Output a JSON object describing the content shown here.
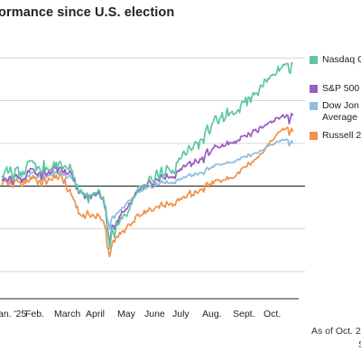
{
  "chart_data": {
    "type": "line",
    "title": "ormance since U.S. election",
    "x_tick_labels": [
      "an. '25",
      "Feb.",
      "March",
      "April",
      "May",
      "June",
      "July",
      "Aug.",
      "Sept.",
      "Oct."
    ],
    "grid": true,
    "legend_placement": "right",
    "note_lines": [
      "As of Oct. 2",
      "S"
    ],
    "ylim": [
      -0.27,
      0.33
    ],
    "baseline": 0,
    "n_points": 240,
    "series": [
      {
        "name": "Nasdaq C",
        "color": "#5ec7a2",
        "values": [
          0.024,
          0.019,
          0.03,
          0.038,
          0.045,
          0.03,
          0.034,
          0.045,
          0.03,
          0.012,
          0.026,
          0.041,
          0.043,
          0.045,
          0.023,
          0.033,
          0.022,
          0.035,
          0.027,
          0.033,
          0.048,
          0.058,
          0.058,
          0.06,
          0.058,
          0.059,
          0.053,
          0.053,
          0.037,
          0.045,
          0.045,
          0.038,
          0.03,
          0.035,
          0.06,
          0.035,
          0.044,
          0.039,
          0.039,
          0.035,
          0.042,
          0.041,
          0.057,
          0.045,
          0.056,
          0.042,
          0.053,
          0.058,
          0.052,
          0.039,
          0.045,
          0.048,
          0.044,
          0.041,
          0.039,
          0.051,
          0.039,
          0.036,
          0.016,
          0.02,
          -0.004,
          0.004,
          -0.012,
          -0.017,
          -0.008,
          -0.018,
          -0.016,
          -0.021,
          -0.018,
          -0.028,
          -0.039,
          -0.02,
          -0.022,
          -0.024,
          -0.016,
          -0.016,
          -0.016,
          -0.016,
          -0.008,
          -0.011,
          -0.025,
          -0.031,
          -0.025,
          -0.046,
          -0.057,
          -0.097,
          -0.118,
          -0.146,
          -0.127,
          -0.098,
          -0.108,
          -0.12,
          -0.1,
          -0.085,
          -0.091,
          -0.086,
          -0.073,
          -0.077,
          -0.069,
          -0.066,
          -0.069,
          -0.071,
          -0.061,
          -0.055,
          -0.045,
          -0.041,
          -0.029,
          -0.026,
          -0.022,
          -0.016,
          -0.002,
          -0.001,
          -0.0,
          -0.008,
          0.002,
          -0.005,
          -0.001,
          0.004,
          0.01,
          0.021,
          0.023,
          0.016,
          0.011,
          0.006,
          0.024,
          0.038,
          0.025,
          0.017,
          0.034,
          0.044,
          0.018,
          0.026,
          0.028,
          0.048,
          0.044,
          0.04,
          0.036,
          0.03,
          0.037,
          0.03,
          0.03,
          0.055,
          0.055,
          0.065,
          0.063,
          0.067,
          0.076,
          0.082,
          0.074,
          0.073,
          0.082,
          0.095,
          0.09,
          0.083,
          0.087,
          0.095,
          0.104,
          0.102,
          0.102,
          0.087,
          0.108,
          0.11,
          0.108,
          0.1,
          0.125,
          0.134,
          0.143,
          0.126,
          0.122,
          0.138,
          0.147,
          0.152,
          0.164,
          0.164,
          0.151,
          0.146,
          0.158,
          0.161,
          0.172,
          0.151,
          0.155,
          0.164,
          0.182,
          0.164,
          0.17,
          0.172,
          0.175,
          0.167,
          0.17,
          0.17,
          0.176,
          0.179,
          0.172,
          0.19,
          0.199,
          0.197,
          0.196,
          0.208,
          0.188,
          0.208,
          0.208,
          0.196,
          0.211,
          0.219,
          0.214,
          0.218,
          0.218,
          0.212,
          0.227,
          0.237,
          0.233,
          0.233,
          0.25,
          0.249,
          0.243,
          0.252,
          0.251,
          0.259,
          0.259,
          0.262,
          0.26,
          0.26,
          0.265,
          0.28,
          0.269,
          0.275,
          0.277,
          0.285,
          0.283,
          0.286,
          0.286,
          0.287,
          0.267,
          0.264,
          0.288,
          0.289
        ]
      },
      {
        "name": "S&P 500",
        "color": "#9b5cc4",
        "values": [
          0.015,
          0.013,
          0.017,
          0.017,
          0.015,
          0.01,
          0.021,
          0.023,
          0.01,
          0.005,
          0.023,
          0.027,
          0.026,
          0.021,
          0.02,
          0.019,
          0.009,
          0.016,
          0.016,
          0.016,
          0.027,
          0.036,
          0.033,
          0.041,
          0.041,
          0.04,
          0.039,
          0.031,
          0.028,
          0.025,
          0.031,
          0.033,
          0.016,
          0.028,
          0.041,
          0.031,
          0.025,
          0.03,
          0.035,
          0.028,
          0.031,
          0.036,
          0.049,
          0.042,
          0.045,
          0.032,
          0.041,
          0.044,
          0.042,
          0.034,
          0.032,
          0.039,
          0.029,
          0.028,
          0.03,
          0.036,
          0.031,
          0.025,
          0.012,
          0.014,
          -0.007,
          -0.001,
          -0.017,
          -0.014,
          -0.013,
          -0.016,
          -0.019,
          -0.029,
          -0.025,
          -0.023,
          -0.031,
          -0.023,
          -0.029,
          -0.021,
          -0.018,
          -0.02,
          -0.02,
          -0.017,
          -0.014,
          -0.018,
          -0.029,
          -0.031,
          -0.032,
          -0.05,
          -0.059,
          -0.096,
          -0.111,
          -0.135,
          -0.116,
          -0.092,
          -0.092,
          -0.101,
          -0.09,
          -0.081,
          -0.085,
          -0.07,
          -0.069,
          -0.059,
          -0.061,
          -0.06,
          -0.054,
          -0.054,
          -0.048,
          -0.04,
          -0.041,
          -0.037,
          -0.028,
          -0.026,
          -0.016,
          -0.012,
          -0.01,
          -0.01,
          -0.005,
          -0.007,
          -0.005,
          0.003,
          -0.001,
          0.002,
          0.006,
          0.015,
          0.009,
          0.004,
          0.004,
          0.004,
          0.014,
          0.017,
          0.014,
          0.011,
          0.022,
          0.027,
          0.019,
          0.019,
          0.016,
          0.029,
          0.022,
          0.019,
          0.021,
          0.022,
          0.019,
          0.022,
          0.018,
          0.032,
          0.036,
          0.034,
          0.04,
          0.038,
          0.045,
          0.049,
          0.045,
          0.048,
          0.052,
          0.055,
          0.058,
          0.046,
          0.053,
          0.052,
          0.063,
          0.059,
          0.055,
          0.054,
          0.064,
          0.062,
          0.068,
          0.055,
          0.07,
          0.081,
          0.087,
          0.072,
          0.076,
          0.081,
          0.087,
          0.089,
          0.096,
          0.093,
          0.093,
          0.09,
          0.09,
          0.091,
          0.098,
          0.093,
          0.093,
          0.097,
          0.105,
          0.097,
          0.102,
          0.101,
          0.102,
          0.1,
          0.105,
          0.1,
          0.106,
          0.108,
          0.106,
          0.116,
          0.117,
          0.117,
          0.119,
          0.117,
          0.115,
          0.125,
          0.122,
          0.116,
          0.124,
          0.132,
          0.13,
          0.133,
          0.127,
          0.126,
          0.137,
          0.14,
          0.136,
          0.137,
          0.141,
          0.144,
          0.143,
          0.148,
          0.149,
          0.152,
          0.148,
          0.152,
          0.151,
          0.159,
          0.16,
          0.16,
          0.157,
          0.161,
          0.163,
          0.167,
          0.161,
          0.161,
          0.167,
          0.165,
          0.146,
          0.159,
          0.17,
          0.165
        ]
      },
      {
        "name": "Dow Jon Average",
        "color": "#8fbce0",
        "values": [
          0.016,
          0.015,
          0.021,
          0.017,
          0.015,
          0.01,
          0.014,
          0.018,
          0.011,
          0.009,
          0.023,
          0.024,
          0.02,
          0.017,
          0.018,
          0.017,
          0.008,
          0.012,
          0.019,
          0.018,
          0.022,
          0.024,
          0.022,
          0.032,
          0.03,
          0.034,
          0.032,
          0.028,
          0.028,
          0.019,
          0.024,
          0.025,
          0.013,
          0.023,
          0.033,
          0.026,
          0.02,
          0.023,
          0.027,
          0.024,
          0.025,
          0.025,
          0.034,
          0.03,
          0.033,
          0.029,
          0.028,
          0.036,
          0.035,
          0.029,
          0.025,
          0.031,
          0.019,
          0.019,
          0.024,
          0.026,
          0.019,
          0.018,
          0.012,
          0.011,
          -0.003,
          0.0,
          -0.012,
          -0.012,
          -0.012,
          -0.014,
          -0.016,
          -0.024,
          -0.021,
          -0.016,
          -0.022,
          -0.021,
          -0.025,
          -0.02,
          -0.016,
          -0.023,
          -0.023,
          -0.017,
          -0.018,
          -0.02,
          -0.027,
          -0.029,
          -0.032,
          -0.044,
          -0.048,
          -0.078,
          -0.083,
          -0.102,
          -0.085,
          -0.073,
          -0.07,
          -0.076,
          -0.066,
          -0.063,
          -0.063,
          -0.057,
          -0.057,
          -0.051,
          -0.05,
          -0.05,
          -0.043,
          -0.04,
          -0.035,
          -0.033,
          -0.034,
          -0.029,
          -0.026,
          -0.025,
          -0.015,
          -0.013,
          -0.013,
          -0.015,
          -0.012,
          -0.012,
          -0.011,
          -0.003,
          -0.007,
          -0.003,
          -0.003,
          0.001,
          0.001,
          -0.004,
          -0.004,
          -0.002,
          0.003,
          0.007,
          0.004,
          0.002,
          0.008,
          0.013,
          0.008,
          0.008,
          0.006,
          0.012,
          0.008,
          0.006,
          0.007,
          0.009,
          0.006,
          0.008,
          0.006,
          0.014,
          0.016,
          0.014,
          0.017,
          0.016,
          0.019,
          0.022,
          0.02,
          0.021,
          0.025,
          0.026,
          0.029,
          0.022,
          0.026,
          0.024,
          0.031,
          0.029,
          0.026,
          0.029,
          0.032,
          0.031,
          0.032,
          0.027,
          0.033,
          0.041,
          0.044,
          0.038,
          0.042,
          0.042,
          0.046,
          0.044,
          0.05,
          0.051,
          0.051,
          0.051,
          0.05,
          0.049,
          0.052,
          0.052,
          0.052,
          0.053,
          0.057,
          0.054,
          0.056,
          0.055,
          0.055,
          0.055,
          0.058,
          0.058,
          0.062,
          0.063,
          0.061,
          0.066,
          0.068,
          0.068,
          0.07,
          0.068,
          0.068,
          0.075,
          0.072,
          0.069,
          0.074,
          0.076,
          0.077,
          0.078,
          0.077,
          0.078,
          0.082,
          0.083,
          0.083,
          0.084,
          0.087,
          0.09,
          0.092,
          0.094,
          0.095,
          0.097,
          0.096,
          0.097,
          0.098,
          0.102,
          0.104,
          0.105,
          0.104,
          0.106,
          0.108,
          0.109,
          0.107,
          0.108,
          0.11,
          0.108,
          0.094,
          0.101,
          0.106,
          0.101
        ]
      },
      {
        "name": "Russell 2",
        "color": "#f0924a",
        "values": [
          0.002,
          0.01,
          0.015,
          0.011,
          0.011,
          0.003,
          0.006,
          0.011,
          0.001,
          -0.003,
          0.009,
          0.014,
          0.016,
          0.01,
          0.01,
          0.008,
          -0.0,
          -0.001,
          0.013,
          0.006,
          0.016,
          0.01,
          0.01,
          0.021,
          0.016,
          0.025,
          0.018,
          0.021,
          0.014,
          0.004,
          0.012,
          0.014,
          -0.0,
          0.008,
          0.023,
          0.015,
          0.005,
          0.011,
          0.019,
          0.015,
          0.014,
          0.014,
          0.029,
          0.019,
          0.025,
          0.016,
          0.017,
          0.032,
          0.026,
          0.016,
          0.006,
          0.017,
          -0.003,
          -0.013,
          -0.011,
          -0.007,
          -0.021,
          -0.024,
          -0.032,
          -0.034,
          -0.05,
          -0.047,
          -0.065,
          -0.065,
          -0.069,
          -0.071,
          -0.066,
          -0.076,
          -0.07,
          -0.058,
          -0.064,
          -0.07,
          -0.073,
          -0.066,
          -0.068,
          -0.073,
          -0.076,
          -0.064,
          -0.069,
          -0.07,
          -0.079,
          -0.079,
          -0.082,
          -0.093,
          -0.102,
          -0.142,
          -0.148,
          -0.165,
          -0.152,
          -0.136,
          -0.127,
          -0.131,
          -0.121,
          -0.118,
          -0.12,
          -0.109,
          -0.112,
          -0.106,
          -0.104,
          -0.109,
          -0.1,
          -0.096,
          -0.089,
          -0.089,
          -0.093,
          -0.087,
          -0.084,
          -0.085,
          -0.071,
          -0.068,
          -0.065,
          -0.071,
          -0.07,
          -0.067,
          -0.066,
          -0.057,
          -0.064,
          -0.058,
          -0.059,
          -0.051,
          -0.053,
          -0.059,
          -0.058,
          -0.055,
          -0.05,
          -0.047,
          -0.048,
          -0.052,
          -0.042,
          -0.038,
          -0.047,
          -0.045,
          -0.05,
          -0.036,
          -0.041,
          -0.045,
          -0.041,
          -0.04,
          -0.047,
          -0.043,
          -0.045,
          -0.035,
          -0.03,
          -0.034,
          -0.029,
          -0.031,
          -0.026,
          -0.024,
          -0.028,
          -0.027,
          -0.02,
          -0.016,
          -0.01,
          -0.025,
          -0.02,
          -0.022,
          -0.011,
          -0.014,
          -0.017,
          -0.013,
          -0.008,
          -0.009,
          -0.006,
          -0.014,
          -0.004,
          0.007,
          0.008,
          -0.002,
          0.005,
          0.003,
          0.012,
          0.005,
          0.013,
          0.015,
          0.014,
          0.015,
          0.012,
          0.009,
          0.014,
          0.014,
          0.014,
          0.015,
          0.022,
          0.016,
          0.019,
          0.02,
          0.018,
          0.019,
          0.021,
          0.024,
          0.03,
          0.033,
          0.029,
          0.039,
          0.042,
          0.044,
          0.045,
          0.045,
          0.046,
          0.056,
          0.052,
          0.049,
          0.057,
          0.057,
          0.062,
          0.063,
          0.066,
          0.067,
          0.072,
          0.076,
          0.076,
          0.078,
          0.083,
          0.089,
          0.094,
          0.098,
          0.101,
          0.106,
          0.106,
          0.108,
          0.111,
          0.117,
          0.121,
          0.126,
          0.126,
          0.129,
          0.131,
          0.135,
          0.132,
          0.133,
          0.137,
          0.137,
          0.119,
          0.127,
          0.135,
          0.127
        ]
      }
    ]
  }
}
